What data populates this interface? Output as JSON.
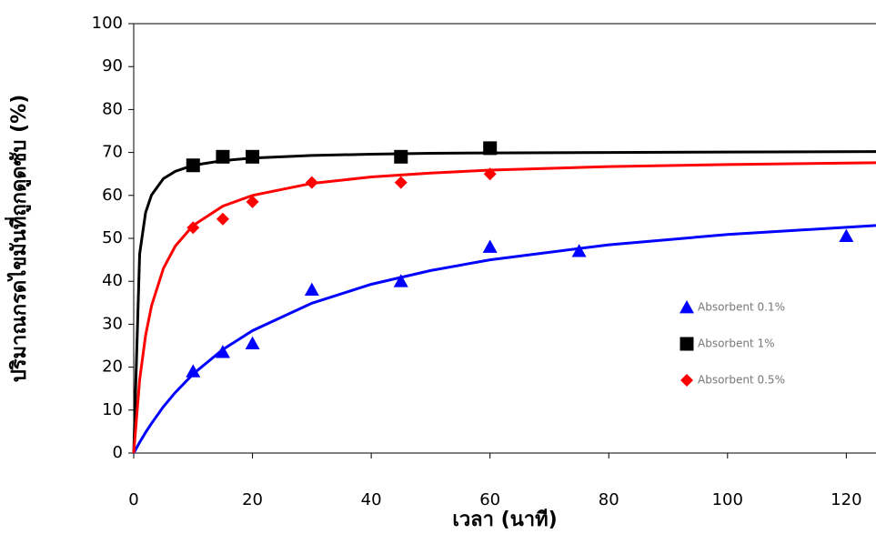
{
  "chart_data": {
    "type": "scatter",
    "x_label": "เวลา (นาที)",
    "y_label": "ปริมาณกรดไขมันที่ถูกดูดซับ (%)",
    "xlim": [
      0,
      125
    ],
    "xticks": [
      0,
      20,
      40,
      60,
      80,
      100,
      120
    ],
    "ylim": [
      0,
      100
    ],
    "yticks": [
      0,
      10,
      20,
      30,
      40,
      50,
      60,
      70,
      80,
      90,
      100
    ],
    "legend": "right",
    "series": [
      {
        "name": "Absorbent 0.1%",
        "color": "#0000ff",
        "marker": "triangle",
        "x": [
          10,
          15,
          20,
          30,
          45,
          60,
          75,
          120
        ],
        "values": [
          19,
          23.5,
          25.5,
          38,
          40,
          48,
          47,
          50.5
        ]
      },
      {
        "name": "Absorbent 1%",
        "color": "#000000",
        "marker": "square",
        "x": [
          10,
          15,
          20,
          45,
          60
        ],
        "values": [
          67,
          69,
          69,
          69,
          71
        ]
      },
      {
        "name": "Absorbent 0.5%",
        "color": "#ff0000",
        "marker": "diamond",
        "x": [
          10,
          15,
          20,
          30,
          45,
          60
        ],
        "values": [
          52.5,
          54.5,
          58.5,
          63,
          63,
          65
        ]
      }
    ],
    "fits": [
      {
        "color": "#0000ff",
        "x": [
          0,
          1,
          2,
          3,
          5,
          7,
          10,
          15,
          20,
          30,
          40,
          50,
          60,
          80,
          100,
          125
        ],
        "values": [
          0,
          2.5,
          4.8,
          6.9,
          10.8,
          14.1,
          18.4,
          24.1,
          28.5,
          34.9,
          39.3,
          42.5,
          45.0,
          48.5,
          50.9,
          53.0
        ]
      },
      {
        "color": "#000000",
        "x": [
          0,
          1,
          2,
          3,
          5,
          7,
          10,
          15,
          20,
          30,
          40,
          50,
          60,
          80,
          100,
          125
        ],
        "values": [
          0,
          46.4,
          56.0,
          60.1,
          63.9,
          65.6,
          67.0,
          68.1,
          68.7,
          69.3,
          69.6,
          69.8,
          69.9,
          70.0,
          70.1,
          70.2
        ]
      },
      {
        "color": "#ff0000",
        "x": [
          0,
          1,
          2,
          3,
          5,
          7,
          10,
          15,
          20,
          30,
          40,
          50,
          60,
          80,
          100,
          125
        ],
        "values": [
          0,
          17.1,
          27.4,
          34.3,
          43.0,
          48.2,
          53.0,
          57.5,
          60.0,
          62.8,
          64.3,
          65.2,
          65.9,
          66.7,
          67.2,
          67.6
        ]
      }
    ]
  }
}
